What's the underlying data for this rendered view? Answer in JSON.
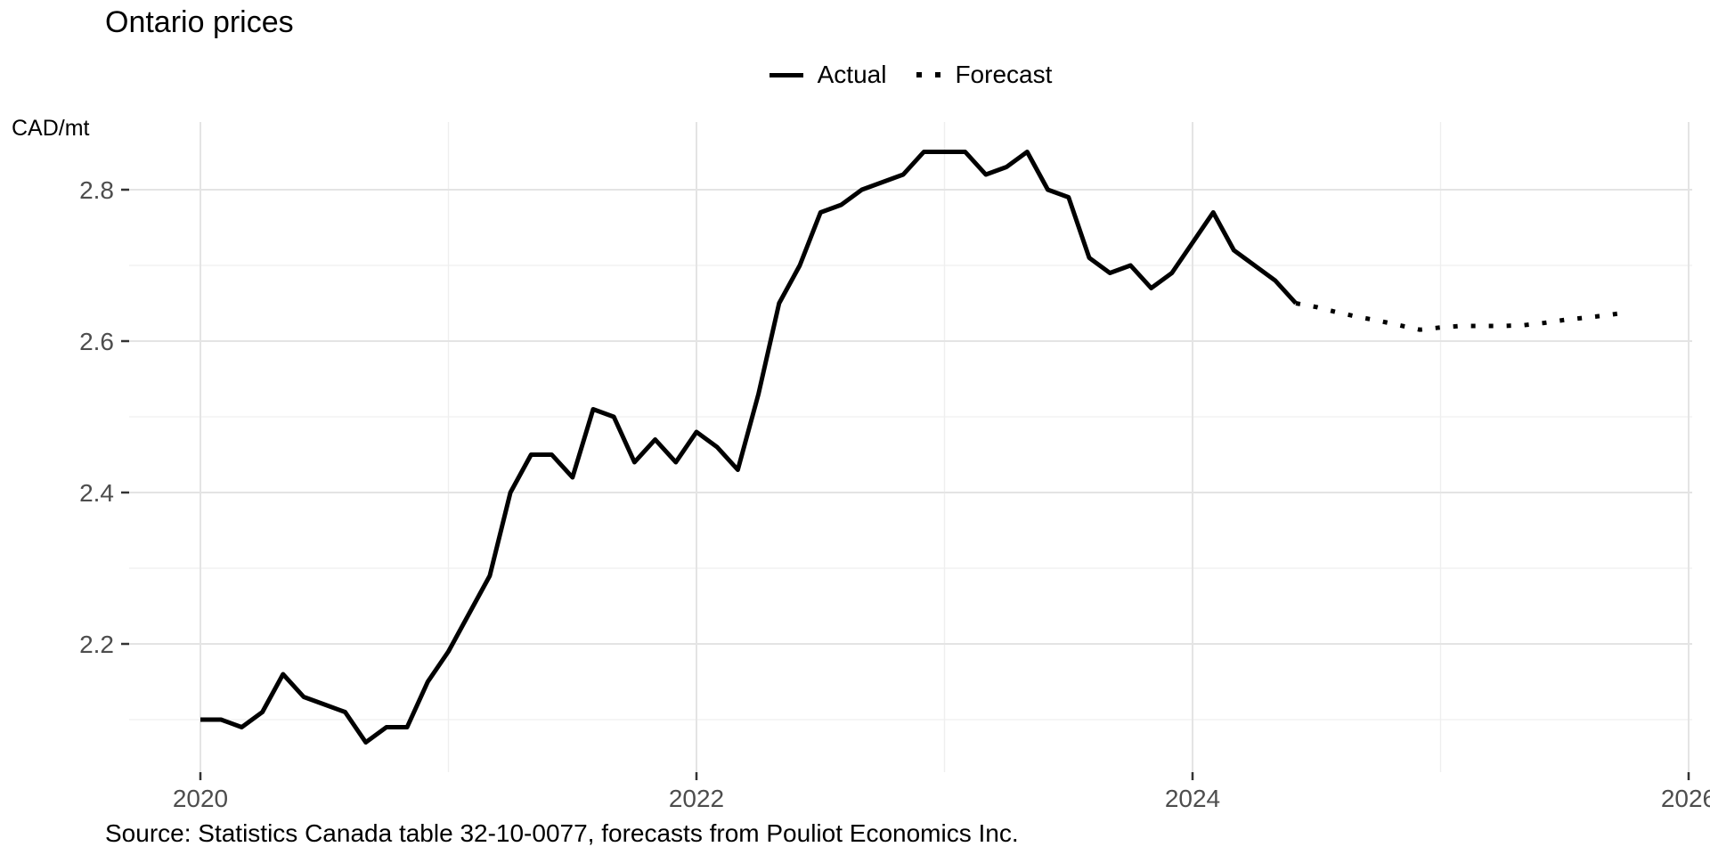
{
  "chart_data": {
    "type": "line",
    "title": "Ontario prices",
    "xlabel": "",
    "ylabel": "CAD/mt",
    "grid": "on",
    "legend_position": "top-center",
    "x_axis": {
      "ticks": [
        2020,
        2022,
        2024,
        2026
      ],
      "minor_ticks": [
        2021,
        2023,
        2025
      ],
      "range": [
        2019.71,
        2026.02
      ]
    },
    "y_axis": {
      "ticks": [
        2.2,
        2.4,
        2.6,
        2.8
      ],
      "minor_ticks": [
        2.1,
        2.3,
        2.5,
        2.7
      ],
      "range": [
        2.03,
        2.89
      ]
    },
    "colors": {
      "line": "#000000",
      "tick_label": "#4d4d4d",
      "tick_mark": "#333333",
      "grid_major": "#e4e4e4",
      "grid_minor": "#efefef"
    },
    "series": [
      {
        "name": "Actual",
        "style": "solid",
        "color": "#000000",
        "points": [
          [
            "2020-01",
            2.1
          ],
          [
            "2020-02",
            2.1
          ],
          [
            "2020-03",
            2.09
          ],
          [
            "2020-04",
            2.11
          ],
          [
            "2020-05",
            2.16
          ],
          [
            "2020-06",
            2.13
          ],
          [
            "2020-07",
            2.12
          ],
          [
            "2020-08",
            2.11
          ],
          [
            "2020-09",
            2.07
          ],
          [
            "2020-10",
            2.09
          ],
          [
            "2020-11",
            2.09
          ],
          [
            "2020-12",
            2.15
          ],
          [
            "2021-01",
            2.19
          ],
          [
            "2021-02",
            2.24
          ],
          [
            "2021-03",
            2.29
          ],
          [
            "2021-04",
            2.4
          ],
          [
            "2021-05",
            2.45
          ],
          [
            "2021-06",
            2.45
          ],
          [
            "2021-07",
            2.42
          ],
          [
            "2021-08",
            2.51
          ],
          [
            "2021-09",
            2.5
          ],
          [
            "2021-10",
            2.44
          ],
          [
            "2021-11",
            2.47
          ],
          [
            "2021-12",
            2.44
          ],
          [
            "2022-01",
            2.48
          ],
          [
            "2022-02",
            2.46
          ],
          [
            "2022-03",
            2.43
          ],
          [
            "2022-04",
            2.53
          ],
          [
            "2022-05",
            2.65
          ],
          [
            "2022-06",
            2.7
          ],
          [
            "2022-07",
            2.77
          ],
          [
            "2022-08",
            2.78
          ],
          [
            "2022-09",
            2.8
          ],
          [
            "2022-10",
            2.81
          ],
          [
            "2022-11",
            2.82
          ],
          [
            "2022-12",
            2.85
          ],
          [
            "2023-01",
            2.85
          ],
          [
            "2023-02",
            2.85
          ],
          [
            "2023-03",
            2.82
          ],
          [
            "2023-04",
            2.83
          ],
          [
            "2023-05",
            2.85
          ],
          [
            "2023-06",
            2.8
          ],
          [
            "2023-07",
            2.79
          ],
          [
            "2023-08",
            2.71
          ],
          [
            "2023-09",
            2.69
          ],
          [
            "2023-10",
            2.7
          ],
          [
            "2023-11",
            2.67
          ],
          [
            "2023-12",
            2.69
          ],
          [
            "2024-01",
            2.73
          ],
          [
            "2024-02",
            2.77
          ],
          [
            "2024-03",
            2.72
          ],
          [
            "2024-04",
            2.7
          ],
          [
            "2024-05",
            2.68
          ],
          [
            "2024-06",
            2.65
          ]
        ]
      },
      {
        "name": "Forecast",
        "style": "dotted",
        "color": "#000000",
        "points": [
          [
            "2024-06",
            2.65
          ],
          [
            "2024-07",
            2.645
          ],
          [
            "2024-08",
            2.638
          ],
          [
            "2024-09",
            2.632
          ],
          [
            "2024-10",
            2.627
          ],
          [
            "2024-11",
            2.621
          ],
          [
            "2024-12",
            2.615
          ],
          [
            "2025-01",
            2.618
          ],
          [
            "2025-02",
            2.62
          ],
          [
            "2025-03",
            2.62
          ],
          [
            "2025-04",
            2.62
          ],
          [
            "2025-05",
            2.621
          ],
          [
            "2025-06",
            2.624
          ],
          [
            "2025-07",
            2.628
          ],
          [
            "2025-08",
            2.631
          ],
          [
            "2025-09",
            2.634
          ],
          [
            "2025-10",
            2.638
          ]
        ]
      }
    ],
    "source_note": "Source: Statistics Canada table 32-10-0077, forecasts from Pouliot Economics Inc."
  }
}
